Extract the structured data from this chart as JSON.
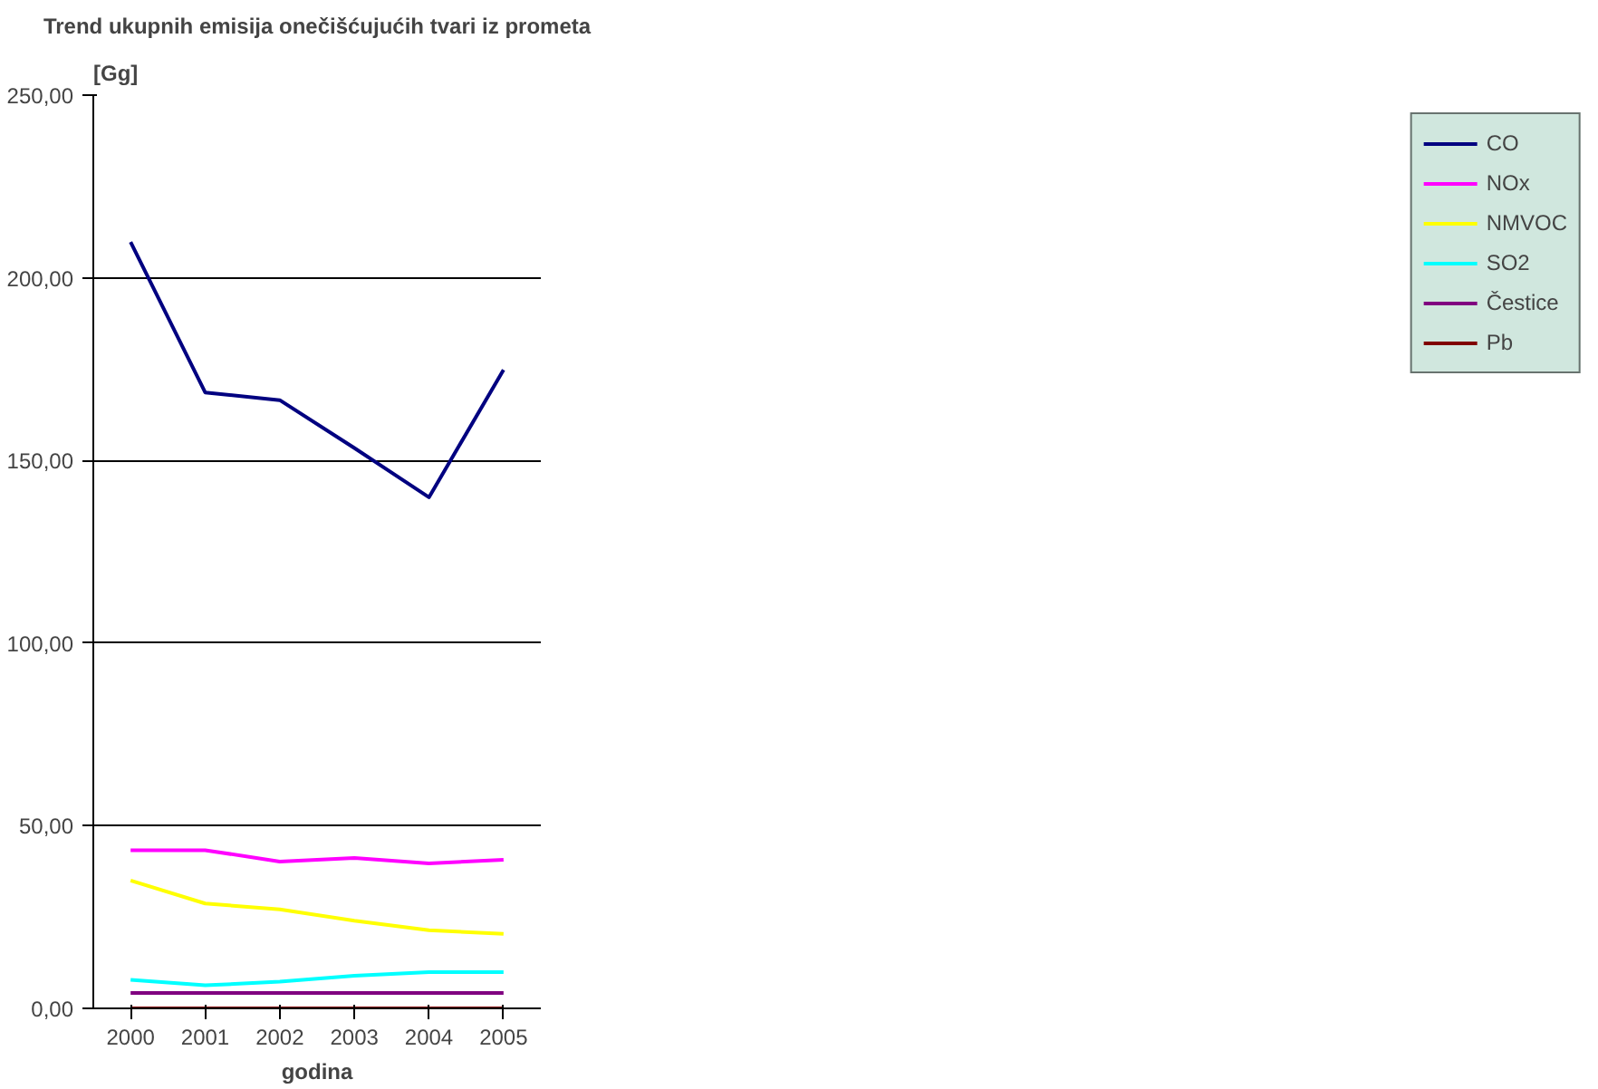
{
  "chart_data": {
    "type": "line",
    "title": "Trend ukupnih emisija onečišćujućih tvari iz prometa",
    "xlabel": "godina",
    "ylabel": "[Gg]",
    "categories": [
      "2000",
      "2001",
      "2002",
      "2003",
      "2004",
      "2005"
    ],
    "series": [
      {
        "name": "CO",
        "color": "#000080",
        "values": [
          209.8,
          168.6,
          166.5,
          153.4,
          139.9,
          174.8
        ]
      },
      {
        "name": "NOx",
        "color": "#ff00ff",
        "values": [
          43.3,
          43.3,
          40.2,
          41.2,
          39.7,
          40.7
        ]
      },
      {
        "name": "NMVOC",
        "color": "#ffff00",
        "values": [
          35.0,
          28.7,
          27.1,
          24.0,
          21.4,
          20.4
        ]
      },
      {
        "name": "SO2",
        "color": "#00ffff",
        "values": [
          7.8,
          6.3,
          7.3,
          8.9,
          9.9,
          9.9
        ]
      },
      {
        "name": "Čestice",
        "color": "#800080",
        "values": [
          4.2,
          4.2,
          4.2,
          4.2,
          4.2,
          4.2
        ]
      },
      {
        "name": "Pb",
        "color": "#800000",
        "values": [
          0.0,
          0.0,
          0.0,
          0.0,
          0.0,
          0.0
        ]
      }
    ],
    "ylim": [
      0,
      250
    ],
    "yticks": [
      {
        "value": 0,
        "label": "0,00"
      },
      {
        "value": 50,
        "label": "50,00"
      },
      {
        "value": 100,
        "label": "100,00"
      },
      {
        "value": 150,
        "label": "150,00"
      },
      {
        "value": 200,
        "label": "200,00"
      },
      {
        "value": 250,
        "label": "250,00"
      }
    ],
    "grid": "y",
    "legend": "right"
  }
}
